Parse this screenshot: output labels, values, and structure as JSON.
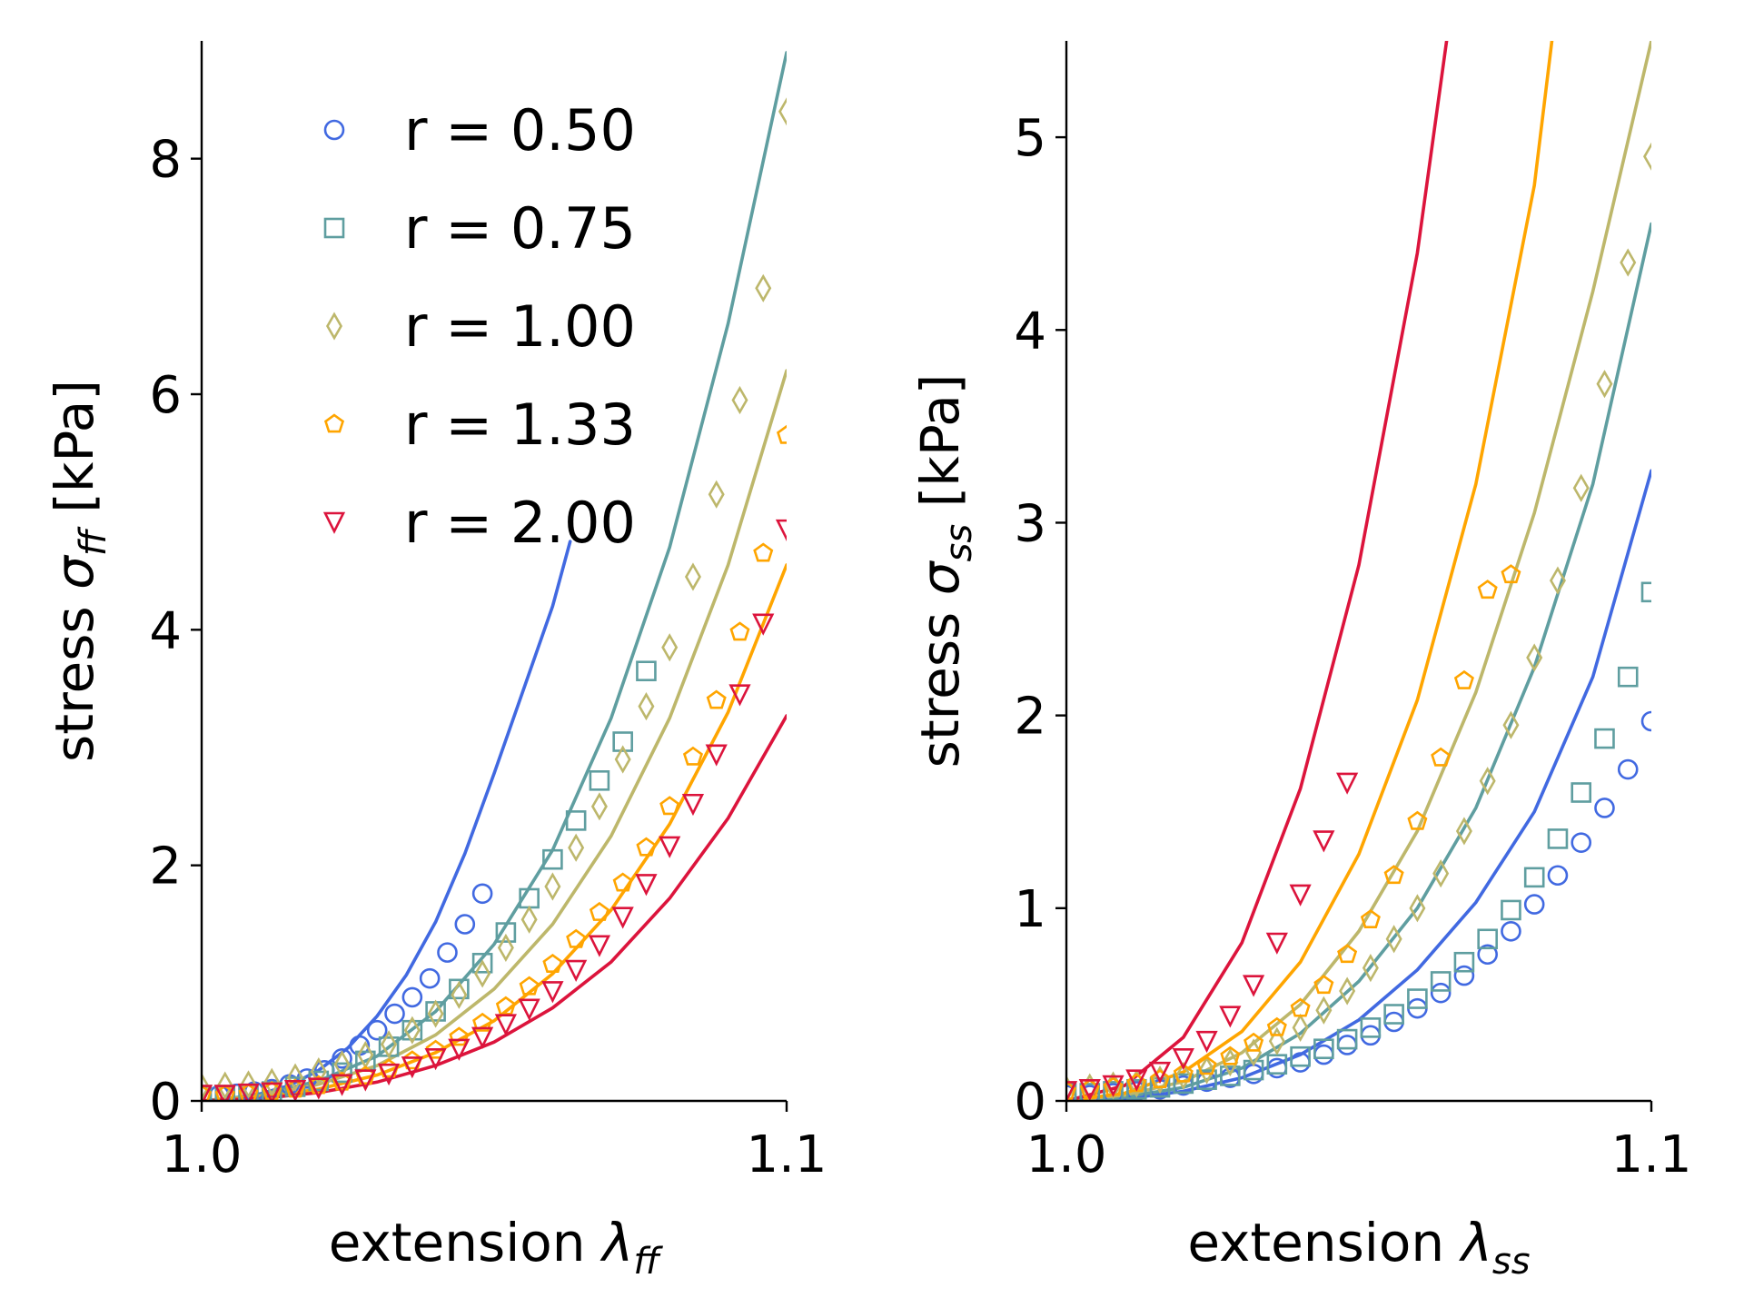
{
  "chart_data": [
    {
      "type": "line",
      "panel": "left",
      "xlabel": "extension",
      "xlabel_symbol": "λ",
      "xlabel_sub": "ff",
      "ylabel": "stress",
      "ylabel_symbol": "σ",
      "ylabel_sub": "ff",
      "ylabel_unit": "[kPa]",
      "xlim": [
        1.0,
        1.1
      ],
      "ylim": [
        0,
        9
      ],
      "xticks": [
        1.0,
        1.1
      ],
      "xtick_labels": [
        "1.0",
        "1.1"
      ],
      "yticks": [
        0,
        2,
        4,
        6,
        8
      ],
      "ytick_labels": [
        "0",
        "2",
        "4",
        "6",
        "8"
      ],
      "grid": false,
      "legend": {
        "placement": "top-left",
        "entries": [
          {
            "label": "r = 0.50",
            "color": "#4169E1",
            "marker": "circle"
          },
          {
            "label": "r = 0.75",
            "color": "#5F9EA0",
            "marker": "square"
          },
          {
            "label": "r = 1.00",
            "color": "#BDB76B",
            "marker": "diamond"
          },
          {
            "label": "r = 1.33",
            "color": "#FFA500",
            "marker": "pentagon"
          },
          {
            "label": "r = 2.00",
            "color": "#DC143C",
            "marker": "triangle-down"
          }
        ]
      },
      "series": [
        {
          "name": "r = 0.50",
          "color": "#4169E1",
          "marker": "circle",
          "points_x": [
            1.0,
            1.003,
            1.006,
            1.009,
            1.012,
            1.015,
            1.018,
            1.021,
            1.024,
            1.027,
            1.03,
            1.033,
            1.036,
            1.039,
            1.042,
            1.045,
            1.048
          ],
          "points_y": [
            0.05,
            0.05,
            0.06,
            0.08,
            0.1,
            0.14,
            0.19,
            0.26,
            0.36,
            0.47,
            0.6,
            0.74,
            0.88,
            1.04,
            1.26,
            1.5,
            1.76
          ],
          "curve_x": [
            1.0,
            1.005,
            1.01,
            1.015,
            1.02,
            1.025,
            1.03,
            1.035,
            1.04,
            1.045,
            1.05,
            1.055,
            1.06,
            1.063
          ],
          "curve_y": [
            0.0,
            0.02,
            0.06,
            0.13,
            0.26,
            0.45,
            0.72,
            1.07,
            1.52,
            2.1,
            2.78,
            3.49,
            4.2,
            4.75
          ]
        },
        {
          "name": "r = 0.75",
          "color": "#5F9EA0",
          "marker": "square",
          "points_x": [
            1.0,
            1.004,
            1.008,
            1.012,
            1.016,
            1.02,
            1.024,
            1.028,
            1.032,
            1.036,
            1.04,
            1.044,
            1.048,
            1.052,
            1.056,
            1.06,
            1.064,
            1.068,
            1.072,
            1.076
          ],
          "points_y": [
            0.05,
            0.05,
            0.06,
            0.08,
            0.12,
            0.17,
            0.24,
            0.34,
            0.46,
            0.6,
            0.76,
            0.95,
            1.17,
            1.43,
            1.72,
            2.05,
            2.38,
            2.72,
            3.05,
            3.65
          ],
          "curve_x": [
            1.0,
            1.01,
            1.02,
            1.03,
            1.04,
            1.05,
            1.06,
            1.07,
            1.08,
            1.09,
            1.1
          ],
          "curve_y": [
            0.0,
            0.05,
            0.17,
            0.38,
            0.76,
            1.33,
            2.13,
            3.25,
            4.7,
            6.6,
            8.9
          ]
        },
        {
          "name": "r = 1.00",
          "color": "#BDB76B",
          "marker": "diamond",
          "points_x": [
            1.0,
            1.004,
            1.008,
            1.012,
            1.016,
            1.02,
            1.024,
            1.028,
            1.032,
            1.036,
            1.04,
            1.044,
            1.048,
            1.052,
            1.056,
            1.06,
            1.064,
            1.068,
            1.072,
            1.076,
            1.08,
            1.084,
            1.088,
            1.092,
            1.096,
            1.1
          ],
          "points_y": [
            0.12,
            0.13,
            0.14,
            0.16,
            0.2,
            0.25,
            0.31,
            0.39,
            0.48,
            0.6,
            0.74,
            0.9,
            1.08,
            1.3,
            1.54,
            1.82,
            2.15,
            2.5,
            2.9,
            3.35,
            3.85,
            4.45,
            5.15,
            5.95,
            6.9,
            8.4
          ],
          "curve_x": [
            1.0,
            1.01,
            1.02,
            1.03,
            1.04,
            1.05,
            1.06,
            1.07,
            1.08,
            1.09,
            1.1
          ],
          "curve_y": [
            0.0,
            0.04,
            0.14,
            0.3,
            0.56,
            0.95,
            1.5,
            2.25,
            3.25,
            4.55,
            6.2
          ]
        },
        {
          "name": "r = 1.33",
          "color": "#FFA500",
          "marker": "pentagon",
          "points_x": [
            1.0,
            1.004,
            1.008,
            1.012,
            1.016,
            1.02,
            1.024,
            1.028,
            1.032,
            1.036,
            1.04,
            1.044,
            1.048,
            1.052,
            1.056,
            1.06,
            1.064,
            1.068,
            1.072,
            1.076,
            1.08,
            1.084,
            1.088,
            1.092,
            1.096,
            1.1
          ],
          "points_y": [
            0.05,
            0.05,
            0.06,
            0.08,
            0.1,
            0.13,
            0.16,
            0.21,
            0.27,
            0.34,
            0.43,
            0.54,
            0.66,
            0.8,
            0.97,
            1.16,
            1.37,
            1.6,
            1.85,
            2.15,
            2.5,
            2.92,
            3.4,
            3.98,
            4.65,
            5.65
          ],
          "curve_x": [
            1.0,
            1.01,
            1.02,
            1.03,
            1.04,
            1.05,
            1.06,
            1.07,
            1.08,
            1.09,
            1.1
          ],
          "curve_y": [
            0.0,
            0.03,
            0.1,
            0.22,
            0.41,
            0.68,
            1.08,
            1.62,
            2.35,
            3.3,
            4.55
          ]
        },
        {
          "name": "r = 2.00",
          "color": "#DC143C",
          "marker": "triangle-down",
          "points_x": [
            1.0,
            1.004,
            1.008,
            1.012,
            1.016,
            1.02,
            1.024,
            1.028,
            1.032,
            1.036,
            1.04,
            1.044,
            1.048,
            1.052,
            1.056,
            1.06,
            1.064,
            1.068,
            1.072,
            1.076,
            1.08,
            1.084,
            1.088,
            1.092,
            1.096,
            1.1
          ],
          "points_y": [
            0.05,
            0.05,
            0.06,
            0.07,
            0.09,
            0.11,
            0.14,
            0.18,
            0.23,
            0.29,
            0.36,
            0.44,
            0.54,
            0.65,
            0.78,
            0.93,
            1.11,
            1.32,
            1.56,
            1.84,
            2.16,
            2.52,
            2.94,
            3.45,
            4.05,
            4.85
          ],
          "curve_x": [
            1.0,
            1.01,
            1.02,
            1.03,
            1.04,
            1.05,
            1.06,
            1.07,
            1.08,
            1.09,
            1.1
          ],
          "curve_y": [
            0.0,
            0.02,
            0.07,
            0.16,
            0.3,
            0.5,
            0.79,
            1.18,
            1.72,
            2.4,
            3.27
          ]
        }
      ]
    },
    {
      "type": "line",
      "panel": "right",
      "xlabel": "extension",
      "xlabel_symbol": "λ",
      "xlabel_sub": "ss",
      "ylabel": "stress",
      "ylabel_symbol": "σ",
      "ylabel_sub": "ss",
      "ylabel_unit": "[kPa]",
      "xlim": [
        1.0,
        1.1
      ],
      "ylim": [
        0,
        5.5
      ],
      "xticks": [
        1.0,
        1.1
      ],
      "xtick_labels": [
        "1.0",
        "1.1"
      ],
      "yticks": [
        0,
        1,
        2,
        3,
        4,
        5
      ],
      "ytick_labels": [
        "0",
        "1",
        "2",
        "3",
        "4",
        "5"
      ],
      "grid": false,
      "series": [
        {
          "name": "r = 0.50",
          "color": "#4169E1",
          "marker": "circle",
          "points_x": [
            1.0,
            1.004,
            1.008,
            1.012,
            1.016,
            1.02,
            1.024,
            1.028,
            1.032,
            1.036,
            1.04,
            1.044,
            1.048,
            1.052,
            1.056,
            1.06,
            1.064,
            1.068,
            1.072,
            1.076,
            1.08,
            1.084,
            1.088,
            1.092,
            1.096,
            1.1
          ],
          "points_y": [
            0.03,
            0.03,
            0.04,
            0.05,
            0.06,
            0.08,
            0.1,
            0.12,
            0.14,
            0.17,
            0.2,
            0.24,
            0.29,
            0.34,
            0.41,
            0.48,
            0.56,
            0.65,
            0.76,
            0.88,
            1.02,
            1.17,
            1.34,
            1.52,
            1.72,
            1.97
          ],
          "curve_x": [
            1.0,
            1.01,
            1.02,
            1.03,
            1.04,
            1.05,
            1.06,
            1.07,
            1.08,
            1.09,
            1.1
          ],
          "curve_y": [
            0.0,
            0.01,
            0.05,
            0.12,
            0.24,
            0.42,
            0.68,
            1.03,
            1.5,
            2.2,
            3.27
          ]
        },
        {
          "name": "r = 0.75",
          "color": "#5F9EA0",
          "marker": "square",
          "points_x": [
            1.0,
            1.004,
            1.008,
            1.012,
            1.016,
            1.02,
            1.024,
            1.028,
            1.032,
            1.036,
            1.04,
            1.044,
            1.048,
            1.052,
            1.056,
            1.06,
            1.064,
            1.068,
            1.072,
            1.076,
            1.08,
            1.084,
            1.088,
            1.092,
            1.096,
            1.1
          ],
          "points_y": [
            0.04,
            0.04,
            0.05,
            0.06,
            0.07,
            0.09,
            0.11,
            0.13,
            0.16,
            0.19,
            0.23,
            0.27,
            0.32,
            0.38,
            0.45,
            0.53,
            0.62,
            0.72,
            0.84,
            0.99,
            1.16,
            1.36,
            1.6,
            1.88,
            2.2,
            2.64
          ],
          "curve_x": [
            1.0,
            1.01,
            1.02,
            1.03,
            1.04,
            1.05,
            1.06,
            1.07,
            1.08,
            1.09,
            1.1
          ],
          "curve_y": [
            0.0,
            0.02,
            0.07,
            0.17,
            0.35,
            0.62,
            1.0,
            1.52,
            2.25,
            3.2,
            4.55
          ]
        },
        {
          "name": "r = 1.00",
          "color": "#BDB76B",
          "marker": "diamond",
          "points_x": [
            1.0,
            1.004,
            1.008,
            1.012,
            1.016,
            1.02,
            1.024,
            1.028,
            1.032,
            1.036,
            1.04,
            1.044,
            1.048,
            1.052,
            1.056,
            1.06,
            1.064,
            1.068,
            1.072,
            1.076,
            1.08,
            1.084,
            1.088,
            1.092,
            1.096,
            1.1
          ],
          "points_y": [
            0.06,
            0.07,
            0.08,
            0.09,
            0.11,
            0.13,
            0.16,
            0.2,
            0.25,
            0.31,
            0.38,
            0.47,
            0.57,
            0.69,
            0.84,
            1.0,
            1.18,
            1.4,
            1.66,
            1.95,
            2.3,
            2.7,
            3.18,
            3.72,
            4.35,
            4.9
          ],
          "curve_x": [
            1.0,
            1.01,
            1.02,
            1.03,
            1.04,
            1.05,
            1.06,
            1.07,
            1.08,
            1.09,
            1.1
          ],
          "curve_y": [
            0.0,
            0.03,
            0.1,
            0.25,
            0.5,
            0.88,
            1.4,
            2.12,
            3.05,
            4.2,
            5.5
          ]
        },
        {
          "name": "r = 1.33",
          "color": "#FFA500",
          "marker": "pentagon",
          "points_x": [
            1.0,
            1.004,
            1.008,
            1.012,
            1.016,
            1.02,
            1.024,
            1.028,
            1.032,
            1.036,
            1.04,
            1.044,
            1.048,
            1.052,
            1.056,
            1.06,
            1.064,
            1.068,
            1.072,
            1.076
          ],
          "points_y": [
            0.05,
            0.06,
            0.07,
            0.09,
            0.11,
            0.14,
            0.18,
            0.23,
            0.3,
            0.38,
            0.48,
            0.6,
            0.76,
            0.94,
            1.17,
            1.45,
            1.78,
            2.18,
            2.65,
            2.73
          ],
          "curve_x": [
            1.0,
            1.01,
            1.02,
            1.03,
            1.04,
            1.05,
            1.06,
            1.07,
            1.08,
            1.083
          ],
          "curve_y": [
            0.0,
            0.04,
            0.15,
            0.36,
            0.72,
            1.28,
            2.08,
            3.2,
            4.75,
            5.5
          ]
        },
        {
          "name": "r = 2.00",
          "color": "#DC143C",
          "marker": "triangle-down",
          "points_x": [
            1.0,
            1.004,
            1.008,
            1.012,
            1.016,
            1.02,
            1.024,
            1.028,
            1.032,
            1.036,
            1.04,
            1.044,
            1.048
          ],
          "points_y": [
            0.05,
            0.06,
            0.08,
            0.11,
            0.15,
            0.22,
            0.31,
            0.44,
            0.6,
            0.82,
            1.07,
            1.35,
            1.65
          ],
          "curve_x": [
            1.0,
            1.01,
            1.02,
            1.03,
            1.04,
            1.05,
            1.06,
            1.065
          ],
          "curve_y": [
            0.0,
            0.08,
            0.33,
            0.82,
            1.62,
            2.78,
            4.4,
            5.5
          ]
        }
      ]
    }
  ]
}
